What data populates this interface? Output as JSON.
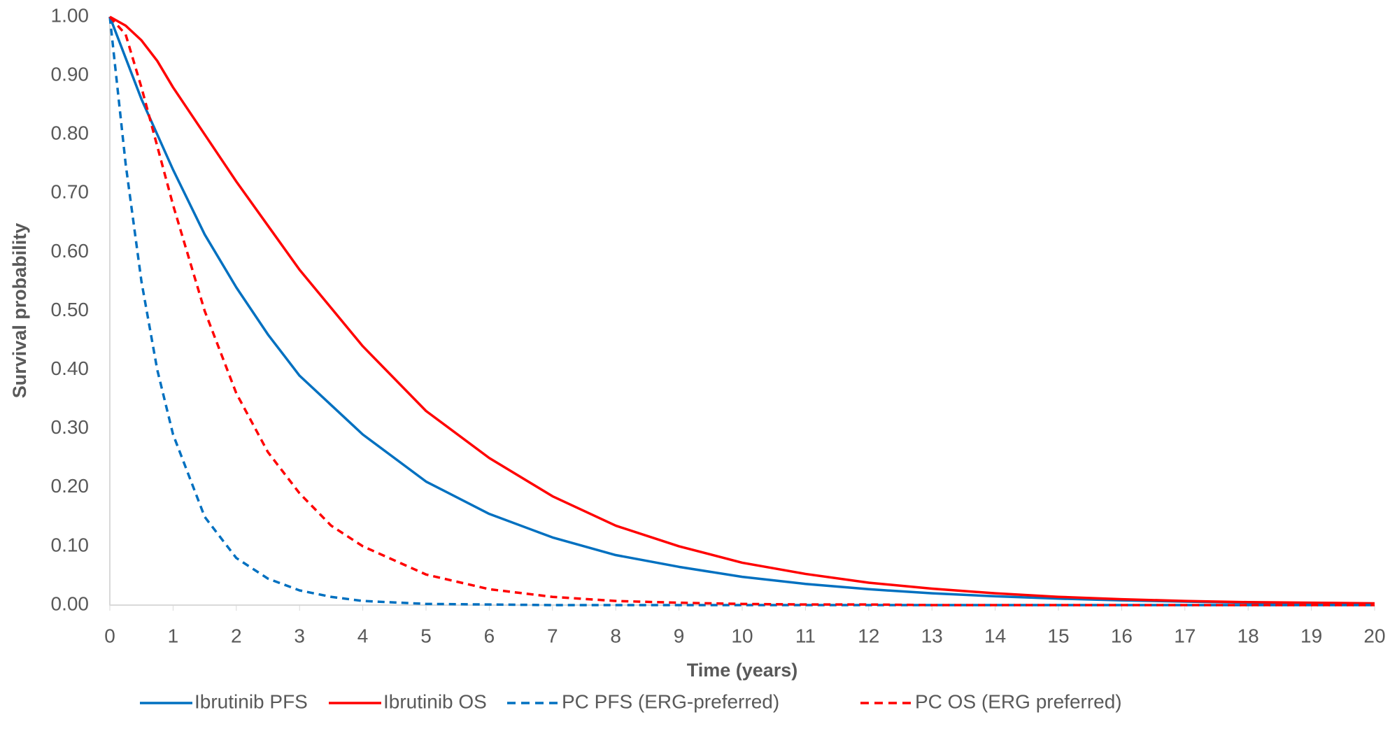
{
  "chart_data": {
    "type": "line",
    "x_label": "Time (years)",
    "y_label": "Survival probability",
    "x": [
      0,
      0.25,
      0.5,
      0.75,
      1,
      1.5,
      2,
      2.5,
      3,
      3.5,
      4,
      5,
      6,
      7,
      8,
      9,
      10,
      11,
      12,
      13,
      14,
      15,
      16,
      17,
      18,
      19,
      20
    ],
    "series": [
      {
        "name": "Ibrutinib PFS",
        "color": "#0070c0",
        "dashed": false,
        "values": [
          1,
          0.93,
          0.86,
          0.8,
          0.74,
          0.63,
          0.54,
          0.46,
          0.39,
          0.34,
          0.29,
          0.21,
          0.155,
          0.115,
          0.085,
          0.065,
          0.048,
          0.036,
          0.027,
          0.02,
          0.015,
          0.011,
          0.008,
          0.006,
          0.004,
          0.003,
          0.002
        ]
      },
      {
        "name": "Ibrutinib OS",
        "color": "#ff0000",
        "dashed": false,
        "values": [
          1,
          0.985,
          0.96,
          0.925,
          0.88,
          0.8,
          0.72,
          0.645,
          0.57,
          0.505,
          0.44,
          0.33,
          0.25,
          0.185,
          0.135,
          0.1,
          0.072,
          0.053,
          0.038,
          0.028,
          0.02,
          0.014,
          0.01,
          0.007,
          0.005,
          0.004,
          0.003
        ]
      },
      {
        "name": "PC PFS (ERG-preferred)",
        "color": "#0070c0",
        "dashed": true,
        "values": [
          1,
          0.75,
          0.55,
          0.4,
          0.29,
          0.15,
          0.08,
          0.045,
          0.025,
          0.014,
          0.007,
          0.002,
          0.001,
          0,
          0,
          0,
          0,
          0,
          0,
          0,
          0,
          0,
          0,
          0,
          0,
          0,
          0
        ]
      },
      {
        "name": "PC OS (ERG preferred)",
        "color": "#ff0000",
        "dashed": true,
        "values": [
          1,
          0.97,
          0.88,
          0.78,
          0.68,
          0.5,
          0.36,
          0.26,
          0.19,
          0.135,
          0.1,
          0.052,
          0.027,
          0.014,
          0.007,
          0.004,
          0.002,
          0.001,
          0.001,
          0,
          0,
          0,
          0,
          0,
          0,
          0,
          0
        ]
      }
    ],
    "xlim": [
      0,
      20
    ],
    "xticks": [
      0,
      1,
      2,
      3,
      4,
      5,
      6,
      7,
      8,
      9,
      10,
      11,
      12,
      13,
      14,
      15,
      16,
      17,
      18,
      19,
      20
    ],
    "ylim": [
      0,
      1
    ],
    "yticks": [
      {
        "value": 0,
        "label": "0.00"
      },
      {
        "value": 0.1,
        "label": "0.10"
      },
      {
        "value": 0.2,
        "label": "0.20"
      },
      {
        "value": 0.3,
        "label": "0.30"
      },
      {
        "value": 0.4,
        "label": "0.40"
      },
      {
        "value": 0.5,
        "label": "0.50"
      },
      {
        "value": 0.6,
        "label": "0.60"
      },
      {
        "value": 0.7,
        "label": "0.70"
      },
      {
        "value": 0.8,
        "label": "0.80"
      },
      {
        "value": 0.9,
        "label": "0.90"
      },
      {
        "value": 1,
        "label": "1.00"
      }
    ],
    "grid": false,
    "legend": "bottom"
  }
}
